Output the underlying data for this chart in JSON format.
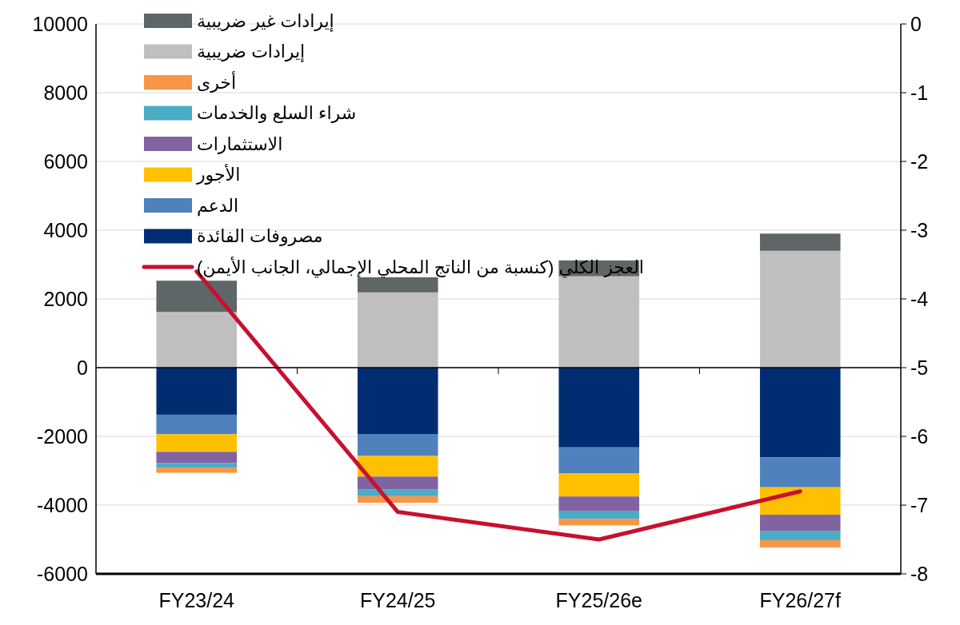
{
  "chart_data": {
    "type": "bar",
    "stacked": true,
    "categories": [
      "FY23/24",
      "FY24/25",
      "FY25/26e",
      "FY26/27f"
    ],
    "series": [
      {
        "name": "مصروفات الفائدة",
        "color": "#002d72",
        "values": [
          -1370,
          -1930,
          -2320,
          -2610
        ]
      },
      {
        "name": "الدعم",
        "color": "#4f81bd",
        "values": [
          -570,
          -640,
          -750,
          -870
        ]
      },
      {
        "name": "الأجور",
        "color": "#ffc000",
        "values": [
          -510,
          -600,
          -680,
          -800
        ]
      },
      {
        "name": "الاستثمارات",
        "color": "#8064a2",
        "values": [
          -330,
          -380,
          -430,
          -480
        ]
      },
      {
        "name": "شراء السلع والخدمات",
        "color": "#4bacc6",
        "values": [
          -130,
          -190,
          -220,
          -260
        ]
      },
      {
        "name": "أخرى",
        "color": "#f79646",
        "values": [
          -150,
          -190,
          -190,
          -210
        ]
      },
      {
        "name": "إيرادات ضريبية",
        "color": "#bfbfbf",
        "values": [
          1620,
          2190,
          2660,
          3400
        ]
      },
      {
        "name": "إيرادات غير ضريبية",
        "color": "#5f6667",
        "values": [
          910,
          440,
          460,
          500
        ]
      },
      {
        "name": "العجز الكلي (كنسبة من الناتج المحلي الإجمالي، الجانب الأيمن)",
        "type": "line",
        "axis": "y2",
        "color": "#c8102e",
        "values": [
          -3.6,
          -7.1,
          -7.5,
          -6.8
        ]
      }
    ],
    "ylim": [
      -6000,
      10000
    ],
    "yticks": [
      -6000,
      -4000,
      -2000,
      0,
      2000,
      4000,
      6000,
      8000,
      10000
    ],
    "y2lim": [
      -8,
      0
    ],
    "y2ticks": [
      -8,
      -7,
      -6,
      -5,
      -4,
      -3,
      -2,
      -1,
      0
    ],
    "grid": "y",
    "legend": "top left"
  }
}
